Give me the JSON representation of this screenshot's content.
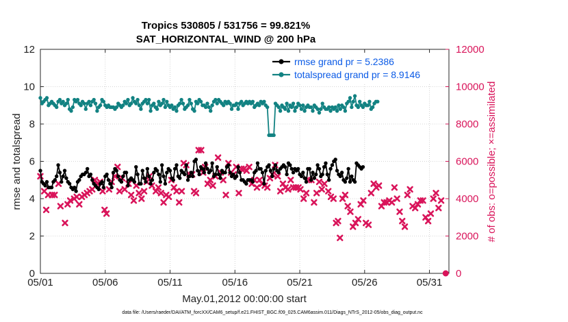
{
  "chart_data": {
    "type": "line",
    "title": "Tropics 530805 / 531756 = 99.821%",
    "subtitle": "SAT_HORIZONTAL_WIND @ 200 hPa",
    "xlabel": "May.01,2012 00:00:00 start",
    "ylabel": "rmse and totalspread",
    "y2label": "# of obs: o=possible; ×=assimilated",
    "xlim": [
      0,
      31.5
    ],
    "ylim": [
      0,
      12
    ],
    "y2lim": [
      0,
      12000
    ],
    "x_ticks": [
      0,
      5,
      10,
      15,
      20,
      25,
      30
    ],
    "x_tick_labels": [
      "05/01",
      "05/06",
      "05/11",
      "05/16",
      "05/21",
      "05/26",
      "05/31"
    ],
    "y_ticks": [
      0,
      2,
      4,
      6,
      8,
      10,
      12
    ],
    "y2_ticks": [
      0,
      2000,
      4000,
      6000,
      8000,
      10000,
      12000
    ],
    "grid": "dotted",
    "legend_position": "top-right",
    "footnote": "data file: /Users/raeder/DAI/ATM_forcXX/CAM6_setup/f.e21.FHIST_BGC.f09_025.CAM6assim.011/Diags_NTrS_2012-05/obs_diag_output.nc",
    "step_days": 0.125,
    "series": [
      {
        "name": "rmse grand pr = 5.2386",
        "axis": "left",
        "color": "#000000",
        "marker": "circle",
        "values": [
          5.5,
          4.9,
          4.8,
          4.7,
          4.9,
          4.6,
          4.6,
          4.6,
          4.9,
          5.0,
          5.2,
          5.8,
          5.4,
          4.9,
          5.2,
          5.5,
          5.1,
          4.9,
          4.8,
          4.6,
          4.5,
          4.6,
          4.4,
          4.9,
          5.0,
          5.2,
          5.3,
          5.3,
          5.4,
          5.6,
          5.2,
          5.3,
          5.0,
          4.8,
          4.7,
          4.6,
          4.5,
          4.8,
          4.9,
          4.6,
          5.2,
          5.3,
          5.0,
          4.8,
          4.6,
          5.4,
          5.6,
          5.5,
          5.2,
          5.0,
          4.9,
          5.2,
          5.4,
          5.4,
          4.7,
          5.0,
          5.1,
          5.0,
          4.9,
          5.7,
          5.3,
          4.8,
          4.8,
          5.5,
          5.1,
          4.9,
          5.6,
          5.2,
          4.8,
          5.0,
          5.4,
          5.6,
          5.5,
          5.3,
          4.9,
          5.8,
          5.2,
          4.8,
          5.4,
          5.6,
          5.5,
          5.1,
          5.0,
          5.6,
          5.8,
          5.2,
          5.1,
          5.5,
          5.4,
          5.3,
          5.8,
          5.0,
          5.2,
          5.4,
          5.2,
          6.0,
          6.1,
          5.5,
          5.3,
          5.7,
          5.6,
          5.4,
          5.9,
          5.6,
          5.4,
          5.5,
          5.9,
          5.2,
          5.3,
          5.7,
          5.3,
          5.1,
          5.5,
          5.4,
          5.4,
          5.7,
          5.8,
          5.4,
          5.2,
          5.3,
          5.1,
          5.2,
          5.7,
          5.4,
          5.0,
          5.0,
          4.9,
          4.8,
          5.0,
          5.0,
          5.0,
          4.9,
          5.4,
          5.5,
          5.9,
          5.6,
          5.6,
          5.4,
          4.8,
          5.5,
          5.7,
          5.8,
          5.5,
          5.2,
          5.6,
          5.8,
          5.5,
          5.4,
          5.6,
          5.7,
          5.8,
          5.7,
          5.3,
          5.9,
          5.8,
          5.6,
          5.4,
          5.6,
          5.5,
          5.6,
          5.3,
          5.2,
          5.4,
          5.1,
          4.9,
          5.6,
          5.6,
          5.0,
          5.4,
          5.1,
          5.3,
          5.8,
          5.6,
          5.2,
          5.3,
          5.7,
          5.9,
          5.3,
          5.0,
          5.6,
          5.8,
          6.0,
          6.1,
          5.5,
          5.3,
          5.2,
          5.4,
          5.0,
          4.9,
          5.1,
          5.6,
          4.9,
          5.2,
          5.0,
          4.9,
          5.9,
          5.8,
          5.7,
          5.6,
          5.7
        ]
      },
      {
        "name": "totalspread grand pr = 8.9146",
        "axis": "left",
        "color": "#128282",
        "marker": "circle",
        "values": [
          9.4,
          9.1,
          9.2,
          9.3,
          9.4,
          9.0,
          9.1,
          9.2,
          9.1,
          9.0,
          8.9,
          9.2,
          9.3,
          9.1,
          9.2,
          9.0,
          9.1,
          9.3,
          8.8,
          8.7,
          8.9,
          9.3,
          9.2,
          9.3,
          9.1,
          9.0,
          9.2,
          9.1,
          8.8,
          9.1,
          9.2,
          9.0,
          9.2,
          9.3,
          9.1,
          8.7,
          8.9,
          9.0,
          9.3,
          9.2,
          9.0,
          8.9,
          9.0,
          8.9,
          8.9,
          8.9,
          8.8,
          8.9,
          9.1,
          9.0,
          8.9,
          9.0,
          9.2,
          9.1,
          9.3,
          9.0,
          9.1,
          9.4,
          9.2,
          9.1,
          9.3,
          9.0,
          8.8,
          9.1,
          9.2,
          9.3,
          9.1,
          9.3,
          8.7,
          9.0,
          9.1,
          8.9,
          8.8,
          9.2,
          9.0,
          9.1,
          9.3,
          8.9,
          9.2,
          9.0,
          8.9,
          9.0,
          8.8,
          8.9,
          8.7,
          9.0,
          9.1,
          9.3,
          9.1,
          8.8,
          8.9,
          9.0,
          9.3,
          9.1,
          8.8,
          8.7,
          9.2,
          9.1,
          9.3,
          9.2,
          9.0,
          9.0,
          8.9,
          9.1,
          8.9,
          8.7,
          9.0,
          9.2,
          9.3,
          9.1,
          9.3,
          9.2,
          9.1,
          9.0,
          9.2,
          9.1,
          9.2,
          9.1,
          8.8,
          9.0,
          9.0,
          9.1,
          8.8,
          9.1,
          9.2,
          9.0,
          9.1,
          9.2,
          9.1,
          9.2,
          9.1,
          9.2,
          8.9,
          9.0,
          9.1,
          9.0,
          9.2,
          9.1,
          9.2,
          9.0,
          8.9,
          7.4,
          7.4,
          7.4,
          7.4,
          9.1,
          9.0,
          8.9,
          8.7,
          9.0,
          8.9,
          8.8,
          9.1,
          8.7,
          9.0,
          8.9,
          9.1,
          8.7,
          8.9,
          9.1,
          9.0,
          8.8,
          9.0,
          8.7,
          8.9,
          9.0,
          8.9,
          8.9,
          8.7,
          9.0,
          8.9,
          8.8,
          8.6,
          8.8,
          9.1,
          8.9,
          8.8,
          8.8,
          8.9,
          8.7,
          8.9,
          8.8,
          8.9,
          8.7,
          9.0,
          8.8,
          9.0,
          8.9,
          8.7,
          9.1,
          9.2,
          9.4,
          8.9,
          9.2,
          9.5,
          9.0,
          8.9,
          9.2,
          9.0,
          8.9,
          9.1,
          9.0,
          9.0,
          9.2,
          8.8,
          8.9,
          9.1,
          9.2,
          9.2
        ]
      },
      {
        "name": "obs assimilated",
        "axis": "right",
        "color": "#d9145a",
        "marker": "x",
        "points": [
          [
            0.0,
            5200
          ],
          [
            0.3,
            4400
          ],
          [
            0.45,
            3400
          ],
          [
            0.6,
            4200
          ],
          [
            0.9,
            4200
          ],
          [
            1.1,
            4200
          ],
          [
            1.4,
            4800
          ],
          [
            1.55,
            3600
          ],
          [
            1.9,
            2700
          ],
          [
            2.1,
            3700
          ],
          [
            2.3,
            3900
          ],
          [
            2.6,
            4000
          ],
          [
            2.8,
            4100
          ],
          [
            3.0,
            3700
          ],
          [
            3.2,
            4100
          ],
          [
            3.4,
            4200
          ],
          [
            3.6,
            4300
          ],
          [
            3.8,
            4400
          ],
          [
            4.0,
            4500
          ],
          [
            4.2,
            5000
          ],
          [
            4.4,
            4800
          ],
          [
            4.6,
            4900
          ],
          [
            4.8,
            4400
          ],
          [
            4.95,
            3400
          ],
          [
            5.1,
            3200
          ],
          [
            5.3,
            4500
          ],
          [
            5.5,
            4900
          ],
          [
            5.75,
            5200
          ],
          [
            5.95,
            5700
          ],
          [
            6.1,
            4400
          ],
          [
            6.3,
            5100
          ],
          [
            6.5,
            4500
          ],
          [
            6.8,
            4800
          ],
          [
            7.0,
            4200
          ],
          [
            7.2,
            3900
          ],
          [
            7.4,
            4700
          ],
          [
            7.6,
            4300
          ],
          [
            7.8,
            4000
          ],
          [
            8.0,
            4400
          ],
          [
            8.2,
            4900
          ],
          [
            8.4,
            5200
          ],
          [
            8.6,
            4700
          ],
          [
            8.9,
            4400
          ],
          [
            9.1,
            4600
          ],
          [
            9.3,
            4300
          ],
          [
            9.5,
            3800
          ],
          [
            9.7,
            4200
          ],
          [
            9.9,
            4100
          ],
          [
            10.1,
            5000
          ],
          [
            10.3,
            4600
          ],
          [
            10.5,
            4400
          ],
          [
            10.7,
            3800
          ],
          [
            10.9,
            4400
          ],
          [
            11.05,
            5900
          ],
          [
            11.25,
            5800
          ],
          [
            11.5,
            5300
          ],
          [
            11.7,
            5300
          ],
          [
            11.85,
            4400
          ],
          [
            12.0,
            4300
          ],
          [
            12.2,
            6600
          ],
          [
            12.4,
            6600
          ],
          [
            12.55,
            5400
          ],
          [
            12.7,
            5700
          ],
          [
            12.9,
            4800
          ],
          [
            13.1,
            5000
          ],
          [
            13.3,
            4700
          ],
          [
            13.5,
            5200
          ],
          [
            13.7,
            6200
          ],
          [
            13.9,
            5400
          ],
          [
            14.1,
            5000
          ],
          [
            14.3,
            4200
          ],
          [
            14.5,
            5900
          ],
          [
            14.7,
            5400
          ],
          [
            14.9,
            5300
          ],
          [
            15.1,
            5700
          ],
          [
            15.3,
            4300
          ],
          [
            15.5,
            5600
          ],
          [
            15.7,
            5600
          ],
          [
            15.9,
            5500
          ],
          [
            16.1,
            5700
          ],
          [
            16.3,
            4800
          ],
          [
            16.5,
            5000
          ],
          [
            16.7,
            4600
          ],
          [
            16.9,
            5000
          ],
          [
            17.1,
            4800
          ],
          [
            17.3,
            4700
          ],
          [
            17.5,
            4600
          ],
          [
            17.7,
            5100
          ],
          [
            17.9,
            5300
          ],
          [
            18.1,
            5800
          ],
          [
            18.3,
            5200
          ],
          [
            18.5,
            4400
          ],
          [
            18.7,
            4800
          ],
          [
            18.9,
            4600
          ],
          [
            19.1,
            4500
          ],
          [
            19.3,
            5000
          ],
          [
            19.5,
            4600
          ],
          [
            19.7,
            4600
          ],
          [
            19.9,
            4600
          ],
          [
            20.05,
            4500
          ],
          [
            20.3,
            4000
          ],
          [
            20.5,
            4300
          ],
          [
            20.7,
            5000
          ],
          [
            20.9,
            5000
          ],
          [
            21.1,
            3800
          ],
          [
            21.3,
            4300
          ],
          [
            21.5,
            4900
          ],
          [
            21.7,
            4500
          ],
          [
            21.9,
            4800
          ],
          [
            22.2,
            4400
          ],
          [
            22.4,
            4100
          ],
          [
            22.6,
            4000
          ],
          [
            22.8,
            2700
          ],
          [
            22.95,
            2800
          ],
          [
            23.1,
            1900
          ],
          [
            23.3,
            4000
          ],
          [
            23.5,
            4200
          ],
          [
            23.7,
            3600
          ],
          [
            23.9,
            3300
          ],
          [
            24.1,
            2500
          ],
          [
            24.3,
            2700
          ],
          [
            24.5,
            2900
          ],
          [
            24.7,
            3700
          ],
          [
            24.9,
            3900
          ],
          [
            25.1,
            2700
          ],
          [
            25.3,
            2600
          ],
          [
            25.5,
            4300
          ],
          [
            25.7,
            4800
          ],
          [
            25.9,
            4600
          ],
          [
            26.1,
            4700
          ],
          [
            26.3,
            3600
          ],
          [
            26.5,
            3800
          ],
          [
            26.7,
            3800
          ],
          [
            26.9,
            3900
          ],
          [
            27.1,
            3800
          ],
          [
            27.3,
            4600
          ],
          [
            27.5,
            4000
          ],
          [
            27.7,
            3300
          ],
          [
            27.9,
            2800
          ],
          [
            28.1,
            2500
          ],
          [
            28.3,
            4200
          ],
          [
            28.5,
            4500
          ],
          [
            28.7,
            3600
          ],
          [
            28.9,
            3500
          ],
          [
            29.1,
            3700
          ],
          [
            29.3,
            3900
          ],
          [
            29.5,
            3900
          ],
          [
            29.7,
            3000
          ],
          [
            29.9,
            2800
          ],
          [
            30.1,
            3200
          ],
          [
            30.3,
            4000
          ],
          [
            30.5,
            4300
          ],
          [
            30.7,
            3500
          ],
          [
            30.9,
            3900
          ]
        ]
      },
      {
        "name": "obs possible",
        "axis": "right",
        "color": "#d9145a",
        "marker": "o",
        "points": [
          [
            31.25,
            0
          ]
        ]
      }
    ]
  }
}
